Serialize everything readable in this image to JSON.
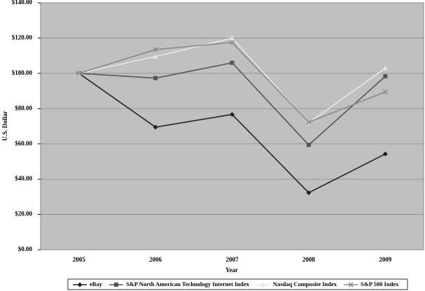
{
  "chart_data": {
    "type": "line",
    "x_label": "Year",
    "y_label": "U.S. Dollar",
    "categories": [
      "2005",
      "2006",
      "2007",
      "2008",
      "2009"
    ],
    "series": [
      {
        "name": "eBay",
        "color": "#222222",
        "marker": "diamond",
        "values": [
          100,
          69.5,
          76.7,
          32.3,
          54.3
        ]
      },
      {
        "name": "S&P North American Technology Internet Index",
        "color": "#555555",
        "marker": "square",
        "values": [
          100,
          97.3,
          106,
          59.4,
          98.3
        ]
      },
      {
        "name": "Nasdaq Composite Index",
        "color": "#e6e6e6",
        "marker": "triangle",
        "values": [
          100,
          109.5,
          120,
          72,
          102.9
        ]
      },
      {
        "name": "S&P 500 Index",
        "color": "#8a8a8a",
        "marker": "x",
        "values": [
          100,
          113.5,
          117.5,
          72.3,
          89.5
        ]
      }
    ],
    "ylim": [
      0,
      140
    ],
    "yticks": [
      {
        "value": 0,
        "label": "$0.00"
      },
      {
        "value": 20,
        "label": "$20.00"
      },
      {
        "value": 40,
        "label": "$40.00"
      },
      {
        "value": 60,
        "label": "$60.00"
      },
      {
        "value": 80,
        "label": "$80.00"
      },
      {
        "value": 100,
        "label": "$100.00"
      },
      {
        "value": 120,
        "label": "$120.00"
      },
      {
        "value": 140,
        "label": "$140.00"
      }
    ],
    "grid": true
  }
}
